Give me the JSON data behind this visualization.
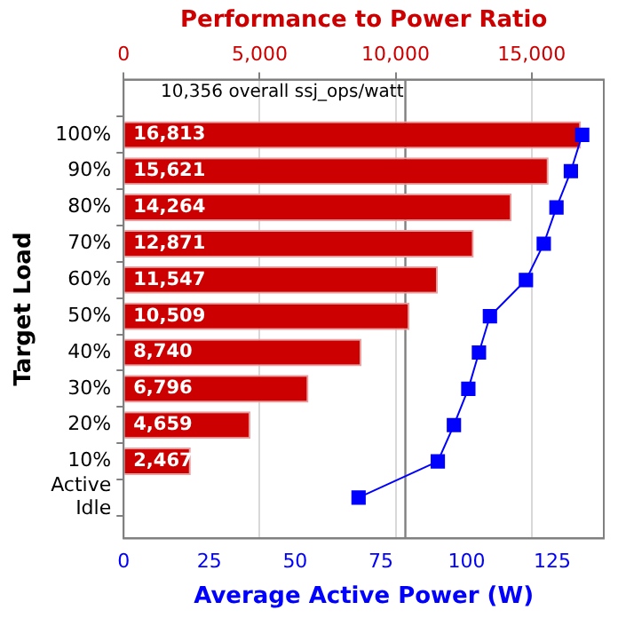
{
  "chart_data": {
    "type": "bar",
    "orientation": "horizontal",
    "x2label": "Performance to Power Ratio",
    "xlabel": "Average Active Power (W)",
    "ylabel": "Target Load",
    "categories": [
      "100%",
      "90%",
      "80%",
      "70%",
      "60%",
      "50%",
      "40%",
      "30%",
      "20%",
      "10%",
      "Active Idle"
    ],
    "series": [
      {
        "axis": "x2",
        "color": "#cc0000",
        "values": [
          16813,
          15621,
          14264,
          12871,
          11547,
          10509,
          8740,
          6796,
          4659,
          2467,
          null
        ],
        "value_labels": [
          "16,813",
          "15,621",
          "14,264",
          "12,871",
          "11,547",
          "10,509",
          "8,740",
          "6,796",
          "4,659",
          "2,467",
          null
        ]
      },
      {
        "type": "line",
        "color": "#0000ff",
        "marker": "square",
        "values": [
          133.7,
          130.4,
          126.2,
          122.5,
          117.3,
          106.8,
          103.6,
          100.5,
          96.3,
          91.6,
          68.5
        ]
      }
    ],
    "xlim": [
      0,
      140
    ],
    "xticks": [
      0,
      25,
      50,
      75,
      100,
      125
    ],
    "x2lim": [
      0,
      17650
    ],
    "x2ticks": [
      {
        "value": 0,
        "label": "0"
      },
      {
        "value": 5000,
        "label": "5,000"
      },
      {
        "value": 10000,
        "label": "10,000"
      },
      {
        "value": 15000,
        "label": "15,000"
      }
    ],
    "grid": "x2",
    "legend": false,
    "ref_lines": [
      {
        "axis": "x2",
        "value": 10356,
        "label": "10,356 overall ssj_ops/watt",
        "color": "#808080"
      }
    ]
  }
}
